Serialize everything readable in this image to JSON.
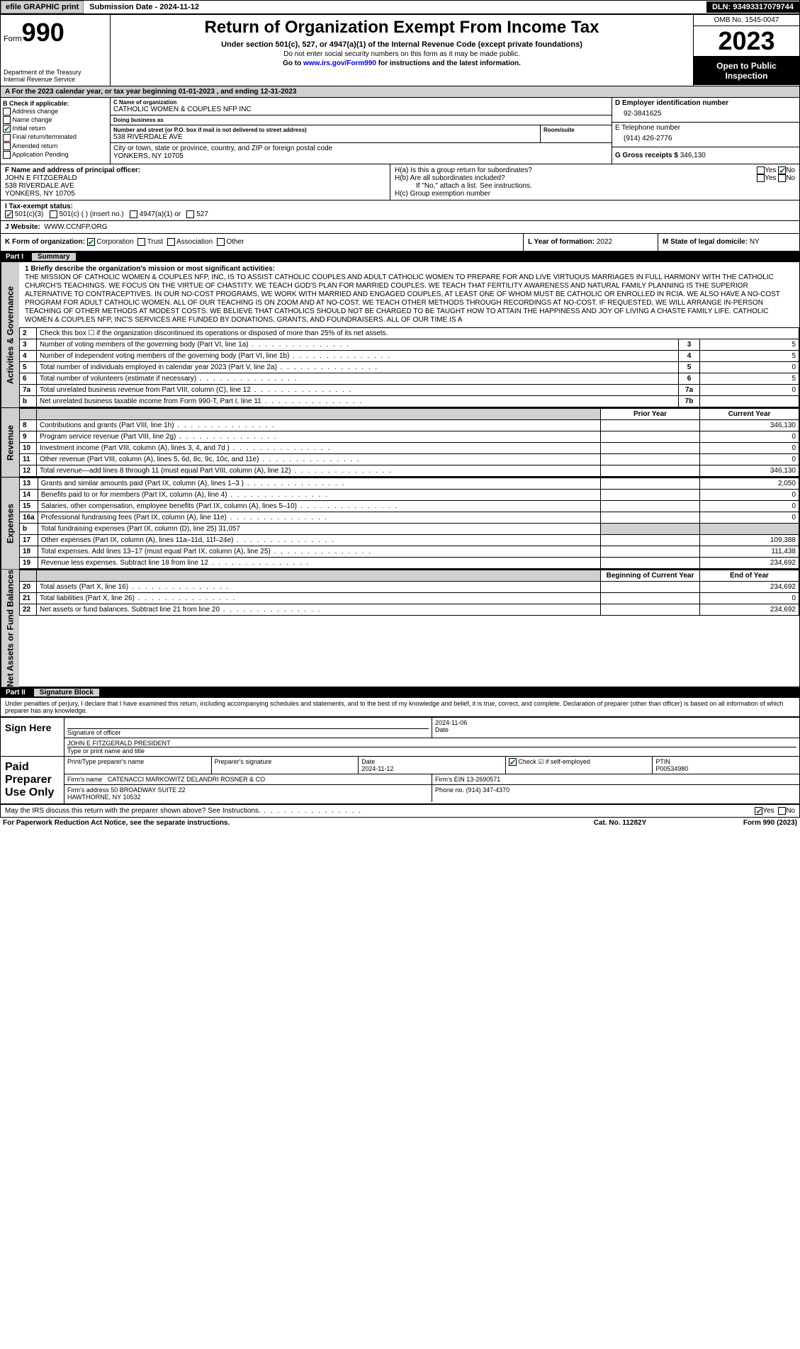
{
  "topbar": {
    "efile": "efile GRAPHIC print",
    "submission": "Submission Date - 2024-11-12",
    "dln": "DLN: 93493317079744"
  },
  "header": {
    "form_prefix": "Form",
    "form_number": "990",
    "title": "Return of Organization Exempt From Income Tax",
    "subtitle1": "Under section 501(c), 527, or 4947(a)(1) of the Internal Revenue Code (except private foundations)",
    "subtitle2": "Do not enter social security numbers on this form as it may be made public.",
    "subtitle3_pre": "Go to ",
    "subtitle3_link": "www.irs.gov/Form990",
    "subtitle3_post": " for instructions and the latest information.",
    "dept": "Department of the Treasury\nInternal Revenue Service",
    "omb": "OMB No. 1545-0047",
    "year": "2023",
    "open": "Open to Public Inspection"
  },
  "periodA": "A For the 2023 calendar year, or tax year beginning 01-01-2023    , and ending 12-31-2023",
  "boxB": {
    "label": "B Check if applicable:",
    "items": [
      {
        "label": "Address change",
        "checked": false
      },
      {
        "label": "Name change",
        "checked": false
      },
      {
        "label": "Initial return",
        "checked": true
      },
      {
        "label": "Final return/terminated",
        "checked": false
      },
      {
        "label": "Amended return",
        "checked": false
      },
      {
        "label": "Application Pending",
        "checked": false
      }
    ]
  },
  "boxC": {
    "name_label": "C Name of organization",
    "name": "CATHOLIC WOMEN & COUPLES NFP INC",
    "dba_label": "Doing business as",
    "dba": "",
    "street_label": "Number and street (or P.O. box if mail is not delivered to street address)",
    "street": "538 RIVERDALE AVE",
    "room_label": "Room/suite",
    "room": "",
    "city_label": "City or town, state or province, country, and ZIP or foreign postal code",
    "city": "YONKERS, NY  10705"
  },
  "boxD": {
    "label": "D Employer identification number",
    "value": "92-3841625"
  },
  "boxE": {
    "label": "E Telephone number",
    "value": "(914) 426-2776"
  },
  "boxG": {
    "label": "G Gross receipts $",
    "value": "346,130"
  },
  "boxF": {
    "label": "F  Name and address of principal officer:",
    "name": "JOHN E FITZGERALD",
    "street": "538 RIVERDALE AVE",
    "city": "YONKERS, NY  10705"
  },
  "boxH": {
    "a_label": "H(a)  Is this a group return for subordinates?",
    "a_yes": false,
    "a_no": true,
    "b_label": "H(b)  Are all subordinates included?",
    "b_note": "If \"No,\" attach a list. See instructions.",
    "c_label": "H(c)  Group exemption number"
  },
  "taxExempt": {
    "label": "I  Tax-exempt status:",
    "c3": true,
    "c3_label": "501(c)(3)",
    "c_label": "501(c) (  ) (insert no.)",
    "a1_label": "4947(a)(1) or",
    "_527": "527"
  },
  "website": {
    "label": "J  Website:",
    "value": "WWW.CCNFP.ORG"
  },
  "boxK": {
    "label": "K Form of organization:",
    "corp": true,
    "corp_label": "Corporation",
    "trust_label": "Trust",
    "assoc_label": "Association",
    "other_label": "Other"
  },
  "boxL": {
    "label": "L Year of formation:",
    "value": "2022"
  },
  "boxM": {
    "label": "M State of legal domicile:",
    "value": "NY"
  },
  "part1": {
    "num": "Part I",
    "title": "Summary"
  },
  "mission_label": "1  Briefly describe the organization's mission or most significant activities:",
  "mission": "THE MISSION OF CATHOLIC WOMEN & COUPLES NFP, INC, IS TO ASSIST CATHOLIC COUPLES AND ADULT CATHOLIC WOMEN TO PREPARE FOR AND LIVE VIRTUOUS MARRIAGES IN FULL HARMONY WITH THE CATHOLIC CHURCH'S TEACHINGS. WE FOCUS ON THE VIRTUE OF CHASTITY. WE TEACH GOD'S PLAN FOR MARRIED COUPLES. WE TEACH THAT FERTILITY AWARENESS AND NATURAL FAMILY PLANNING IS THE SUPERIOR ALTERNATIVE TO CONTRACEPTIVES. IN OUR NO-COST PROGRAMS, WE WORK WITH MARRIED AND ENGAGED COUPLES, AT LEAST ONE OF WHOM MUST BE CATHOLIC OR ENROLLED IN RCIA. WE ALSO HAVE A NO-COST PROGRAM FOR ADULT CATHOLIC WOMEN. ALL OF OUR TEACHING IS ON ZOOM AND AT NO-COST. WE TEACH OTHER METHODS THROUGH RECORDINGS AT NO-COST. IF REQUESTED, WE WILL ARRANGE IN-PERSON TEACHING OF OTHER METHODS AT MODEST COSTS. WE BELIEVE THAT CATHOLICS SHOULD NOT BE CHARGED TO BE TAUGHT HOW TO ATTAIN THE HAPPINESS AND JOY OF LIVING A CHASTE FAMILY LIFE. CATHOLIC WOMEN & COUPLES NFP, INC'S SERVICES ARE FUNDED BY DONATIONS, GRANTS, AND FOUNDRAISERS. ALL OF OUR TIME IS A",
  "vlabels": {
    "activities": "Activities & Governance",
    "revenue": "Revenue",
    "expenses": "Expenses",
    "netassets": "Net Assets or Fund Balances"
  },
  "lines_gov": [
    {
      "n": "2",
      "desc": "Check this box ☐ if the organization discontinued its operations or disposed of more than 25% of its net assets."
    },
    {
      "n": "3",
      "desc": "Number of voting members of the governing body (Part VI, line 1a)",
      "box": "3",
      "val": "5"
    },
    {
      "n": "4",
      "desc": "Number of independent voting members of the governing body (Part VI, line 1b)",
      "box": "4",
      "val": "5"
    },
    {
      "n": "5",
      "desc": "Total number of individuals employed in calendar year 2023 (Part V, line 2a)",
      "box": "5",
      "val": "0"
    },
    {
      "n": "6",
      "desc": "Total number of volunteers (estimate if necessary)",
      "box": "6",
      "val": "5"
    },
    {
      "n": "7a",
      "desc": "Total unrelated business revenue from Part VIII, column (C), line 12",
      "box": "7a",
      "val": "0"
    },
    {
      "n": "b",
      "desc": "Net unrelated business taxable income from Form 990-T, Part I, line 11",
      "box": "7b",
      "val": ""
    }
  ],
  "col_headers": {
    "prior": "Prior Year",
    "current": "Current Year",
    "begin": "Beginning of Current Year",
    "end": "End of Year"
  },
  "lines_rev": [
    {
      "n": "8",
      "desc": "Contributions and grants (Part VIII, line 1h)",
      "prior": "",
      "cur": "346,130"
    },
    {
      "n": "9",
      "desc": "Program service revenue (Part VIII, line 2g)",
      "prior": "",
      "cur": "0"
    },
    {
      "n": "10",
      "desc": "Investment income (Part VIII, column (A), lines 3, 4, and 7d )",
      "prior": "",
      "cur": "0"
    },
    {
      "n": "11",
      "desc": "Other revenue (Part VIII, column (A), lines 5, 6d, 8c, 9c, 10c, and 11e)",
      "prior": "",
      "cur": "0"
    },
    {
      "n": "12",
      "desc": "Total revenue—add lines 8 through 11 (must equal Part VIII, column (A), line 12)",
      "prior": "",
      "cur": "346,130"
    }
  ],
  "lines_exp": [
    {
      "n": "13",
      "desc": "Grants and similar amounts paid (Part IX, column (A), lines 1–3 )",
      "prior": "",
      "cur": "2,050"
    },
    {
      "n": "14",
      "desc": "Benefits paid to or for members (Part IX, column (A), line 4)",
      "prior": "",
      "cur": "0"
    },
    {
      "n": "15",
      "desc": "Salaries, other compensation, employee benefits (Part IX, column (A), lines 5–10)",
      "prior": "",
      "cur": "0"
    },
    {
      "n": "16a",
      "desc": "Professional fundraising fees (Part IX, column (A), line 11e)",
      "prior": "",
      "cur": "0"
    },
    {
      "n": "b",
      "desc": "Total fundraising expenses (Part IX, column (D), line 25) 31,057",
      "shade": true
    },
    {
      "n": "17",
      "desc": "Other expenses (Part IX, column (A), lines 11a–11d, 11f–24e)",
      "prior": "",
      "cur": "109,388"
    },
    {
      "n": "18",
      "desc": "Total expenses. Add lines 13–17 (must equal Part IX, column (A), line 25)",
      "prior": "",
      "cur": "111,438"
    },
    {
      "n": "19",
      "desc": "Revenue less expenses. Subtract line 18 from line 12",
      "prior": "",
      "cur": "234,692"
    }
  ],
  "lines_net": [
    {
      "n": "20",
      "desc": "Total assets (Part X, line 16)",
      "prior": "",
      "cur": "234,692"
    },
    {
      "n": "21",
      "desc": "Total liabilities (Part X, line 26)",
      "prior": "",
      "cur": "0"
    },
    {
      "n": "22",
      "desc": "Net assets or fund balances. Subtract line 21 from line 20",
      "prior": "",
      "cur": "234,692"
    }
  ],
  "part2": {
    "num": "Part II",
    "title": "Signature Block"
  },
  "penalties": "Under penalties of perjury, I declare that I have examined this return, including accompanying schedules and statements, and to the best of my knowledge and belief, it is true, correct, and complete. Declaration of preparer (other than officer) is based on all information of which preparer has any knowledge.",
  "sign": {
    "here": "Sign Here",
    "sig_label": "Signature of officer",
    "date_label": "Date",
    "date": "2024-11-06",
    "name": "JOHN E FITZGERALD PRESIDENT",
    "type_label": "Type or print name and title"
  },
  "preparer": {
    "label": "Paid Preparer Use Only",
    "name_label": "Print/Type preparer's name",
    "sig_label": "Preparer's signature",
    "date_label": "Date",
    "date": "2024-11-12",
    "self_label": "Check ☑ if self-employed",
    "self_checked": true,
    "ptin_label": "PTIN",
    "ptin": "P00534980",
    "firm_name_label": "Firm's name",
    "firm_name": "CATENACCI MARKOWITZ DELANDRI ROSNER & CO",
    "firm_ein_label": "Firm's EIN",
    "firm_ein": "13-2690571",
    "firm_addr_label": "Firm's address",
    "firm_addr1": "50 BROADWAY SUITE 22",
    "firm_addr2": "HAWTHORNE, NY  10532",
    "phone_label": "Phone no.",
    "phone": "(914) 347-4370"
  },
  "discuss": {
    "text": "May the IRS discuss this return with the preparer shown above? See Instructions.",
    "yes": true,
    "yes_label": "Yes",
    "no_label": "No"
  },
  "footer": {
    "left": "For Paperwork Reduction Act Notice, see the separate instructions.",
    "mid": "Cat. No. 11282Y",
    "right_pre": "Form ",
    "right_num": "990",
    "right_post": " (2023)"
  },
  "colors": {
    "header_bg": "#d0d0d0",
    "black": "#000000",
    "check_green": "#1a7a1a"
  }
}
